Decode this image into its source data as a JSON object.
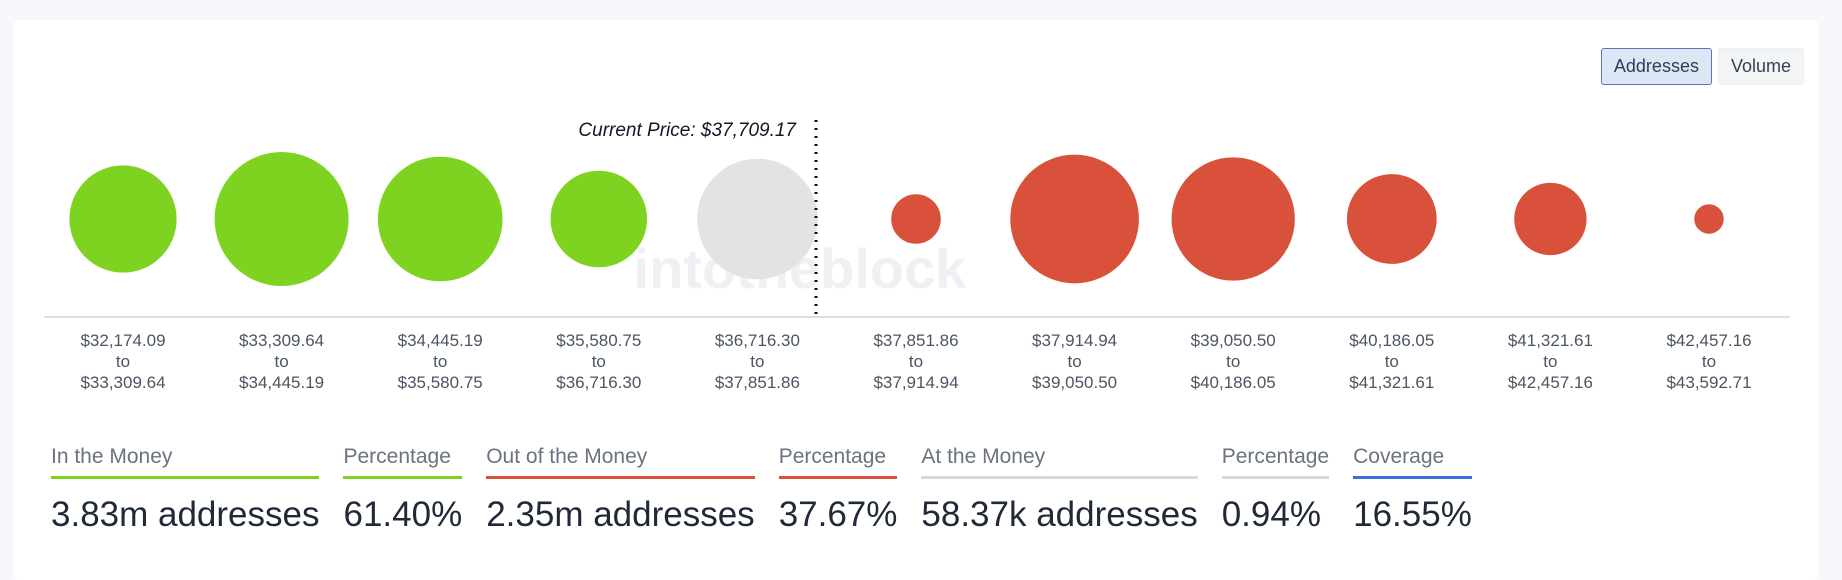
{
  "toggle": {
    "addresses_label": "Addresses",
    "volume_label": "Volume",
    "active": "addresses"
  },
  "watermark": "intotheblock",
  "chart_data": {
    "type": "bubble",
    "measure": "addresses",
    "current_price_label": "Current Price: $37,709.17",
    "current_price": 37709.17,
    "status_colors": {
      "in": "#7ed321",
      "at": "#e3e3e3",
      "out": "#d9513a"
    },
    "clusters": [
      {
        "from": "$32,174.09",
        "to": "$33,309.64",
        "status": "in",
        "relative_size": 0.8
      },
      {
        "from": "$33,309.64",
        "to": "$34,445.19",
        "status": "in",
        "relative_size": 1.0
      },
      {
        "from": "$34,445.19",
        "to": "$35,580.75",
        "status": "in",
        "relative_size": 0.93
      },
      {
        "from": "$35,580.75",
        "to": "$36,716.30",
        "status": "in",
        "relative_size": 0.72
      },
      {
        "from": "$36,716.30",
        "to": "$37,851.86",
        "status": "at",
        "relative_size": 0.9
      },
      {
        "from": "$37,851.86",
        "to": "$37,914.94",
        "status": "out",
        "relative_size": 0.37
      },
      {
        "from": "$37,914.94",
        "to": "$39,050.50",
        "status": "out",
        "relative_size": 0.96
      },
      {
        "from": "$39,050.50",
        "to": "$40,186.05",
        "status": "out",
        "relative_size": 0.92
      },
      {
        "from": "$40,186.05",
        "to": "$41,321.61",
        "status": "out",
        "relative_size": 0.67
      },
      {
        "from": "$41,321.61",
        "to": "$42,457.16",
        "status": "out",
        "relative_size": 0.54
      },
      {
        "from": "$42,457.16",
        "to": "$43,592.71",
        "status": "out",
        "relative_size": 0.22
      }
    ],
    "range_connector": "to"
  },
  "stats": [
    {
      "label": "In the Money",
      "value": "3.83m addresses",
      "color": "#7ed321"
    },
    {
      "label": "Percentage",
      "value": "61.40%",
      "color": "#7ed321"
    },
    {
      "label": "Out of the Money",
      "value": "2.35m addresses",
      "color": "#d9513a"
    },
    {
      "label": "Percentage",
      "value": "37.67%",
      "color": "#d9513a"
    },
    {
      "label": "At the Money",
      "value": "58.37k addresses",
      "color": "#d9d9d9"
    },
    {
      "label": "Percentage",
      "value": "0.94%",
      "color": "#d9d9d9"
    },
    {
      "label": "Coverage",
      "value": "16.55%",
      "color": "#3b6fd6"
    }
  ]
}
